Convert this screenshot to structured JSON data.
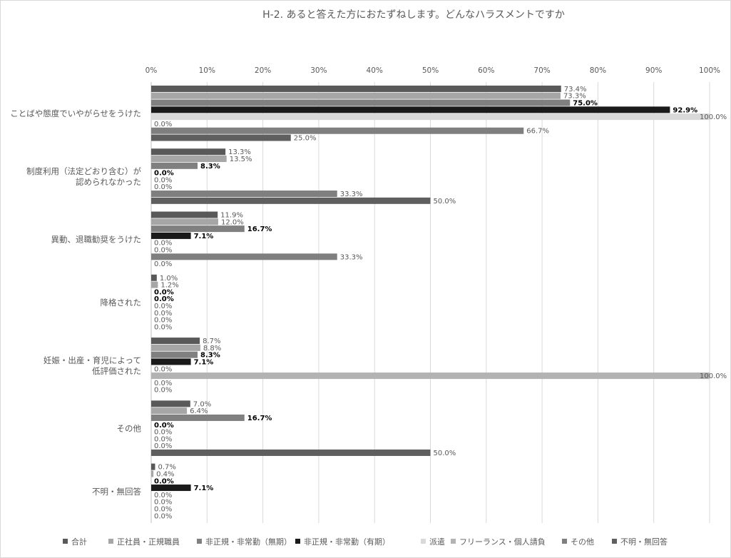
{
  "chart_data": {
    "type": "bar",
    "orientation": "horizontal",
    "title": "H-2.  あると答えた方におたずねします。どんなハラスメントですか",
    "xlim": [
      0,
      100
    ],
    "x_ticks": [
      "0%",
      "10%",
      "20%",
      "30%",
      "40%",
      "50%",
      "60%",
      "70%",
      "80%",
      "90%",
      "100%"
    ],
    "grid": true,
    "legend_position": "bottom",
    "categories": [
      [
        "ことばや態度でいやがらせをうけた"
      ],
      [
        "制度利用（法定どおり含む）が",
        "認められなかった"
      ],
      [
        "異動、退職勧奨をうけた"
      ],
      [
        "降格された"
      ],
      [
        "妊娠・出産・育児によって",
        "低評価された"
      ],
      [
        "その他"
      ],
      [
        "不明・無回答"
      ]
    ],
    "series": [
      {
        "name": "合計",
        "color": "#595959",
        "values": [
          73.4,
          13.3,
          11.9,
          1.0,
          8.7,
          7.0,
          0.7
        ],
        "labels": [
          "73.4%",
          "13.3%",
          "11.9%",
          "1.0%",
          "8.7%",
          "7.0%",
          "0.7%"
        ]
      },
      {
        "name": "正社員・正規職員",
        "color": "#a6a6a6",
        "values": [
          73.3,
          13.5,
          12.0,
          1.2,
          8.8,
          6.4,
          0.4
        ],
        "labels": [
          "73.3%",
          "13.5%",
          "12.0%",
          "1.2%",
          "8.8%",
          "6.4%",
          "0.4%"
        ]
      },
      {
        "name": "非正規・非常勤（無期）",
        "color": "#808080",
        "values": [
          75.0,
          8.3,
          16.7,
          0.0,
          8.3,
          16.7,
          0.0
        ],
        "labels": [
          "75.0%",
          "8.3%",
          "16.7%",
          "0.0%",
          "8.3%",
          "16.7%",
          "0.0%"
        ]
      },
      {
        "name": "非正規・非常勤（有期）",
        "color": "#1a1a1a",
        "values": [
          92.9,
          0.0,
          7.1,
          0.0,
          7.1,
          0.0,
          7.1
        ],
        "labels": [
          "92.9%",
          "0.0%",
          "7.1%",
          "0.0%",
          "7.1%",
          "0.0%",
          "7.1%"
        ]
      },
      {
        "name": "派遣",
        "color": "#d9d9d9",
        "values": [
          100.0,
          0.0,
          0.0,
          0.0,
          0.0,
          0.0,
          0.0
        ],
        "labels": [
          "100.0%",
          "0.0%",
          "0.0%",
          "0.0%",
          "0.0%",
          "0.0%",
          "0.0%"
        ]
      },
      {
        "name": "フリーランス・個人請負",
        "color": "#b3b3b3",
        "values": [
          0.0,
          0.0,
          0.0,
          0.0,
          100.0,
          0.0,
          0.0
        ],
        "labels": [
          "0.0%",
          "0.0%",
          "0.0%",
          "0.0%",
          "100.0%",
          "0.0%",
          "0.0%"
        ]
      },
      {
        "name": "その他",
        "color": "#7f7f7f",
        "values": [
          66.7,
          33.3,
          33.3,
          0.0,
          0.0,
          0.0,
          0.0
        ],
        "labels": [
          "66.7%",
          "33.3%",
          "33.3%",
          "0.0%",
          "0.0%",
          "0.0%",
          "0.0%"
        ]
      },
      {
        "name": "不明・無回答",
        "color": "#5f5f5f",
        "values": [
          25.0,
          50.0,
          0.0,
          0.0,
          0.0,
          50.0,
          0.0
        ],
        "labels": [
          "25.0%",
          "50.0%",
          "0.0%",
          "0.0%",
          "0.0%",
          "50.0%",
          "0.0%"
        ]
      }
    ]
  }
}
